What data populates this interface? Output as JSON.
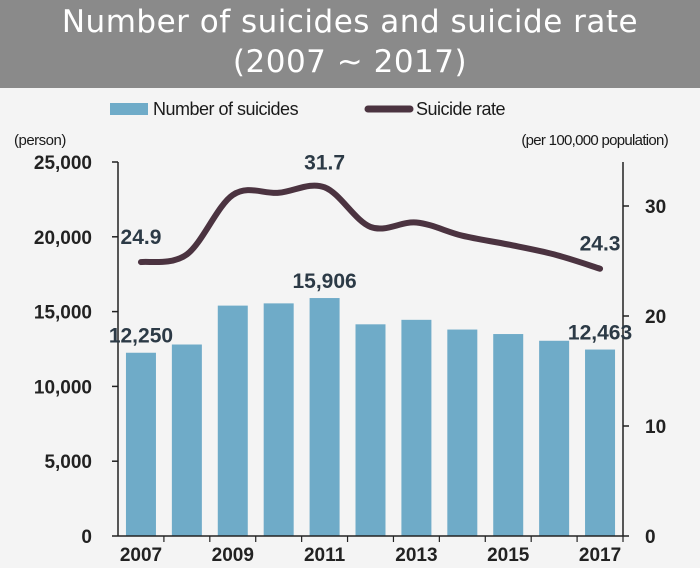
{
  "chart_data": {
    "type": "bar",
    "title": "Number of suicides and suicide rate",
    "subtitle": "(2007 ~ 2017)",
    "categories": [
      "2007",
      "2008",
      "2009",
      "2010",
      "2011",
      "2012",
      "2013",
      "2014",
      "2015",
      "2016",
      "2017"
    ],
    "x_tick_labels": [
      "2007",
      "2009",
      "2011",
      "2013",
      "2015",
      "2017"
    ],
    "series": [
      {
        "name": "Number of suicides",
        "type": "bar",
        "axis": "left",
        "color": "#6fabc8",
        "values": [
          12250,
          12800,
          15400,
          15550,
          15906,
          14150,
          14450,
          13800,
          13500,
          13050,
          12463
        ]
      },
      {
        "name": "Suicide rate",
        "type": "line",
        "axis": "right",
        "color": "#4b3340",
        "values": [
          24.9,
          25.6,
          31.0,
          31.2,
          31.7,
          28.1,
          28.5,
          27.3,
          26.5,
          25.6,
          24.3
        ]
      }
    ],
    "left_axis": {
      "unit": "(person)",
      "ylim": [
        0,
        25000
      ],
      "ticks": [
        0,
        5000,
        10000,
        15000,
        20000,
        25000
      ],
      "tick_labels": [
        "0",
        "5,000",
        "10,000",
        "15,000",
        "20,000",
        "25,000"
      ]
    },
    "right_axis": {
      "unit": "(per 100,000 population)",
      "ylim": [
        0,
        34
      ],
      "ticks": [
        0,
        10,
        20,
        30
      ],
      "tick_labels": [
        "0",
        "10",
        "20",
        "30"
      ]
    },
    "data_labels": [
      {
        "series": "Suicide rate",
        "index": 0,
        "text": "24.9"
      },
      {
        "series": "Suicide rate",
        "index": 4,
        "text": "31.7"
      },
      {
        "series": "Suicide rate",
        "index": 10,
        "text": "24.3"
      },
      {
        "series": "Number of suicides",
        "index": 0,
        "text": "12,250"
      },
      {
        "series": "Number of suicides",
        "index": 4,
        "text": "15,906"
      },
      {
        "series": "Number of suicides",
        "index": 10,
        "text": "12,463"
      }
    ],
    "legend": {
      "position": "top"
    },
    "grid": false
  }
}
